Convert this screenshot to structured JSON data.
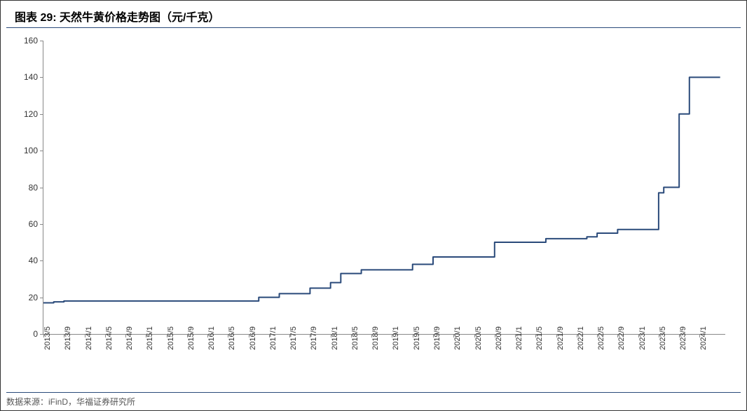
{
  "title": "图表 29:  天然牛黄价格走势图（元/千克）",
  "source": "数据来源：iFinD，华福证券研究所",
  "chart": {
    "type": "line",
    "background_color": "#ffffff",
    "border_color": "#888888",
    "title_fontsize": 16,
    "label_fontsize": 12,
    "xlabel_fontsize": 11,
    "line_color": "#2a4a7a",
    "line_width": 2,
    "ylim": [
      0,
      160
    ],
    "ytick_step": 20,
    "yticks": [
      0,
      20,
      40,
      60,
      80,
      100,
      120,
      140,
      160
    ],
    "x_categories": [
      "2013/5",
      "2013/9",
      "2014/1",
      "2014/5",
      "2014/9",
      "2015/1",
      "2015/5",
      "2015/9",
      "2016/1",
      "2016/5",
      "2016/9",
      "2017/1",
      "2017/5",
      "2017/9",
      "2018/1",
      "2018/5",
      "2018/9",
      "2019/1",
      "2019/5",
      "2019/9",
      "2020/1",
      "2020/5",
      "2020/9",
      "2021/1",
      "2021/5",
      "2021/9",
      "2022/1",
      "2022/5",
      "2022/9",
      "2023/1",
      "2023/5",
      "2023/9",
      "2024/1"
    ],
    "series": [
      {
        "x": "2013/5",
        "y": 17
      },
      {
        "x": "2013/7",
        "y": 17.5
      },
      {
        "x": "2013/9",
        "y": 18
      },
      {
        "x": "2013/11",
        "y": 18
      },
      {
        "x": "2014/1",
        "y": 18
      },
      {
        "x": "2014/3",
        "y": 18
      },
      {
        "x": "2014/5",
        "y": 18
      },
      {
        "x": "2014/7",
        "y": 18
      },
      {
        "x": "2014/9",
        "y": 18
      },
      {
        "x": "2014/11",
        "y": 18
      },
      {
        "x": "2015/1",
        "y": 18
      },
      {
        "x": "2015/3",
        "y": 18
      },
      {
        "x": "2015/5",
        "y": 18
      },
      {
        "x": "2015/7",
        "y": 18
      },
      {
        "x": "2015/9",
        "y": 18
      },
      {
        "x": "2015/11",
        "y": 18
      },
      {
        "x": "2016/1",
        "y": 18
      },
      {
        "x": "2016/3",
        "y": 18
      },
      {
        "x": "2016/5",
        "y": 18
      },
      {
        "x": "2016/7",
        "y": 18
      },
      {
        "x": "2016/9",
        "y": 18
      },
      {
        "x": "2016/11",
        "y": 20
      },
      {
        "x": "2017/1",
        "y": 20
      },
      {
        "x": "2017/3",
        "y": 22
      },
      {
        "x": "2017/5",
        "y": 22
      },
      {
        "x": "2017/7",
        "y": 22
      },
      {
        "x": "2017/9",
        "y": 25
      },
      {
        "x": "2017/11",
        "y": 25
      },
      {
        "x": "2018/1",
        "y": 28
      },
      {
        "x": "2018/3",
        "y": 33
      },
      {
        "x": "2018/5",
        "y": 33
      },
      {
        "x": "2018/7",
        "y": 35
      },
      {
        "x": "2018/9",
        "y": 35
      },
      {
        "x": "2018/11",
        "y": 35
      },
      {
        "x": "2019/1",
        "y": 35
      },
      {
        "x": "2019/3",
        "y": 35
      },
      {
        "x": "2019/5",
        "y": 38
      },
      {
        "x": "2019/7",
        "y": 38
      },
      {
        "x": "2019/9",
        "y": 42
      },
      {
        "x": "2019/11",
        "y": 42
      },
      {
        "x": "2020/1",
        "y": 42
      },
      {
        "x": "2020/3",
        "y": 42
      },
      {
        "x": "2020/5",
        "y": 42
      },
      {
        "x": "2020/7",
        "y": 42
      },
      {
        "x": "2020/9",
        "y": 50
      },
      {
        "x": "2020/11",
        "y": 50
      },
      {
        "x": "2021/1",
        "y": 50
      },
      {
        "x": "2021/3",
        "y": 50
      },
      {
        "x": "2021/5",
        "y": 50
      },
      {
        "x": "2021/7",
        "y": 52
      },
      {
        "x": "2021/9",
        "y": 52
      },
      {
        "x": "2021/11",
        "y": 52
      },
      {
        "x": "2022/1",
        "y": 52
      },
      {
        "x": "2022/3",
        "y": 53
      },
      {
        "x": "2022/5",
        "y": 55
      },
      {
        "x": "2022/7",
        "y": 55
      },
      {
        "x": "2022/9",
        "y": 57
      },
      {
        "x": "2022/11",
        "y": 57
      },
      {
        "x": "2023/1",
        "y": 57
      },
      {
        "x": "2023/3",
        "y": 57
      },
      {
        "x": "2023/5",
        "y": 77
      },
      {
        "x": "2023/6",
        "y": 80
      },
      {
        "x": "2023/7",
        "y": 80
      },
      {
        "x": "2023/9",
        "y": 120
      },
      {
        "x": "2023/10",
        "y": 120
      },
      {
        "x": "2023/11",
        "y": 140
      },
      {
        "x": "2024/1",
        "y": 140
      },
      {
        "x": "2024/3",
        "y": 140
      },
      {
        "x": "2024/5",
        "y": 140
      }
    ],
    "x_domain_start": "2013/5",
    "x_domain_end": "2024/6"
  }
}
